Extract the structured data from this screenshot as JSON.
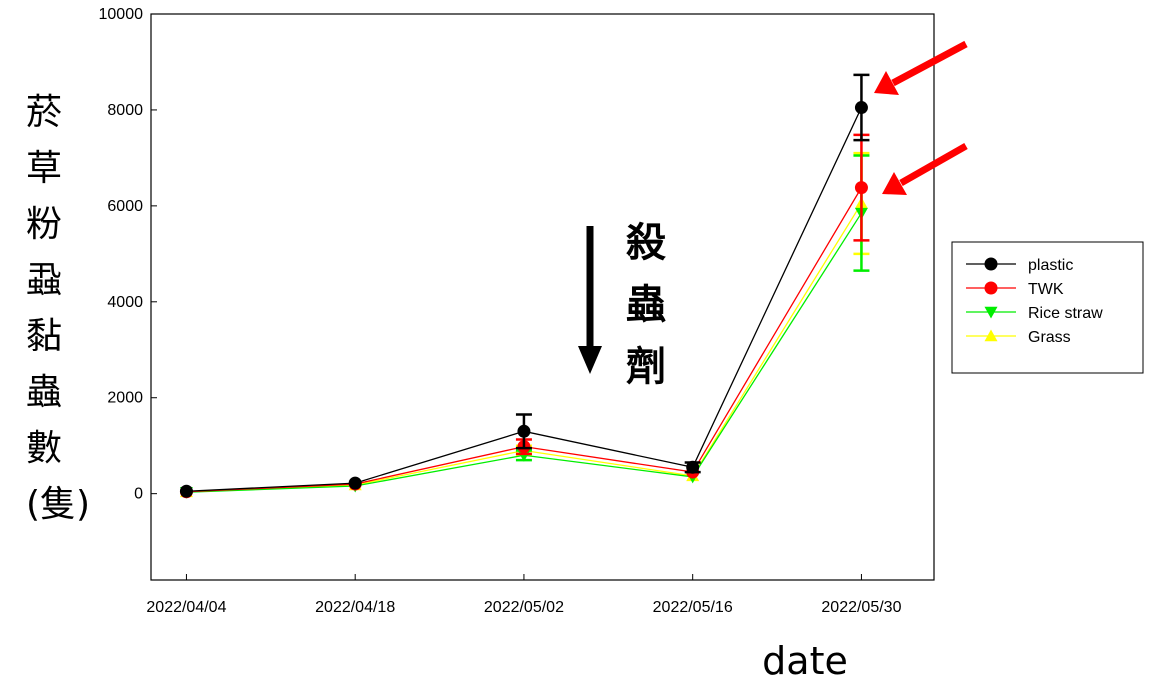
{
  "chart_data": {
    "type": "line",
    "title": "",
    "xlabel": "date",
    "ylabel": "菸草粉蝨黏蟲數(隻)",
    "ylim": [
      -1800,
      10000
    ],
    "yticks": [
      0,
      2000,
      4000,
      6000,
      8000,
      10000
    ],
    "categories": [
      "2022/04/04",
      "2022/04/18",
      "2022/05/02",
      "2022/05/16",
      "2022/05/30"
    ],
    "x": [
      1,
      2,
      3,
      4,
      5
    ],
    "series": [
      {
        "name": "plastic",
        "color": "#000000",
        "marker": "circle",
        "values": [
          50,
          220,
          1300,
          550,
          8050
        ],
        "errors": [
          0,
          0,
          350,
          100,
          680
        ]
      },
      {
        "name": "TWK",
        "color": "#ff0000",
        "marker": "circle",
        "values": [
          40,
          200,
          980,
          450,
          6380
        ],
        "errors": [
          0,
          0,
          150,
          0,
          1100
        ]
      },
      {
        "name": "Rice straw",
        "color": "#00ee00",
        "marker": "triangle-down",
        "values": [
          30,
          160,
          800,
          350,
          5850
        ],
        "errors": [
          0,
          0,
          100,
          0,
          1200
        ]
      },
      {
        "name": "Grass",
        "color": "#ffff00",
        "marker": "triangle-up",
        "values": [
          35,
          180,
          900,
          370,
          6050
        ],
        "errors": [
          0,
          0,
          100,
          0,
          1050
        ]
      }
    ],
    "legend": "right",
    "grid": false,
    "annotations": {
      "pesticide_text": "殺蟲劑",
      "pesticide_arrow_color": "#000000",
      "highlight_arrow_color": "#ff0000"
    }
  }
}
